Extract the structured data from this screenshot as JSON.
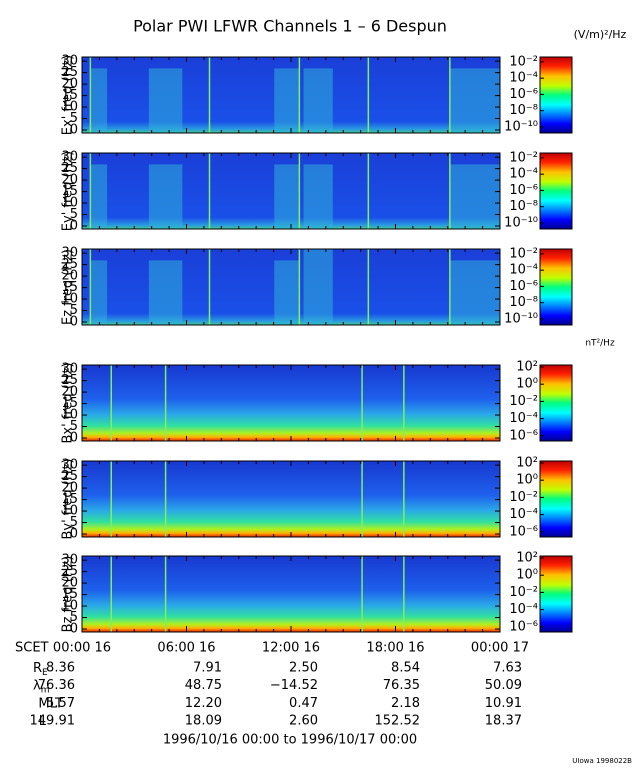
{
  "title": "Polar PWI LFWR Channels 1 – 6 Despun",
  "chart_data": [
    {
      "type": "spectrogram",
      "ylabel": "Ex' freq (Hz)",
      "ylim": [
        -1.3,
        31.8
      ],
      "yticks": [
        0,
        5,
        10,
        15,
        20,
        25,
        30
      ],
      "colorbar": {
        "unit": "(V/m)²/Hz",
        "log": true,
        "clim": [
          1.8e-11,
          0.04
        ],
        "ticks": [
          {
            "value": 0.01,
            "label": "10⁻²"
          },
          {
            "value": 0.0001,
            "label": "10⁻⁴"
          },
          {
            "value": 1e-06,
            "label": "10⁻⁶"
          },
          {
            "value": 1e-08,
            "label": "10⁻⁸"
          },
          {
            "value": 1e-10,
            "label": "10⁻¹⁰"
          }
        ]
      }
    },
    {
      "type": "spectrogram",
      "ylabel": "Ey' freq (Hz)",
      "ylim": [
        -1.3,
        31.8
      ],
      "yticks": [
        0,
        5,
        10,
        15,
        20,
        25,
        30
      ],
      "colorbar": {
        "log": true,
        "clim": [
          1.8e-11,
          0.04
        ],
        "ticks": [
          {
            "value": 0.01,
            "label": "10⁻²"
          },
          {
            "value": 0.0001,
            "label": "10⁻⁴"
          },
          {
            "value": 1e-06,
            "label": "10⁻⁶"
          },
          {
            "value": 1e-08,
            "label": "10⁻⁸"
          },
          {
            "value": 1e-10,
            "label": "10⁻¹⁰"
          }
        ]
      }
    },
    {
      "type": "spectrogram",
      "ylabel": "Ez freq (Hz)",
      "ylim": [
        -1.3,
        31.8
      ],
      "yticks": [
        0,
        5,
        10,
        15,
        20,
        25,
        30
      ],
      "colorbar": {
        "log": true,
        "clim": [
          1.8e-11,
          0.04
        ],
        "ticks": [
          {
            "value": 0.01,
            "label": "10⁻²"
          },
          {
            "value": 0.0001,
            "label": "10⁻⁴"
          },
          {
            "value": 1e-06,
            "label": "10⁻⁶"
          },
          {
            "value": 1e-08,
            "label": "10⁻⁸"
          },
          {
            "value": 1e-10,
            "label": "10⁻¹⁰"
          }
        ]
      }
    },
    {
      "type": "spectrogram",
      "ylabel": "Bx' freq (Hz)",
      "ylim": [
        -1.3,
        31.8
      ],
      "yticks": [
        0,
        5,
        10,
        15,
        20,
        25,
        30
      ],
      "colorbar": {
        "unit": "nT²/Hz",
        "log": true,
        "clim": [
          2.5e-07,
          170
        ],
        "ticks": [
          {
            "value": 100,
            "label": "10²"
          },
          {
            "value": 1,
            "label": "10⁰"
          },
          {
            "value": 0.01,
            "label": "10⁻²"
          },
          {
            "value": 0.0001,
            "label": "10⁻⁴"
          },
          {
            "value": 1e-06,
            "label": "10⁻⁶"
          }
        ]
      }
    },
    {
      "type": "spectrogram",
      "ylabel": "By' freq (Hz)",
      "ylim": [
        -1.3,
        31.8
      ],
      "yticks": [
        0,
        5,
        10,
        15,
        20,
        25,
        30
      ],
      "colorbar": {
        "log": true,
        "clim": [
          2.5e-07,
          170
        ],
        "ticks": [
          {
            "value": 100,
            "label": "10²"
          },
          {
            "value": 1,
            "label": "10⁰"
          },
          {
            "value": 0.01,
            "label": "10⁻²"
          },
          {
            "value": 0.0001,
            "label": "10⁻⁴"
          },
          {
            "value": 1e-06,
            "label": "10⁻⁶"
          }
        ]
      }
    },
    {
      "type": "spectrogram",
      "ylabel": "Bz freq (Hz)",
      "ylim": [
        -1.3,
        31.8
      ],
      "yticks": [
        0,
        5,
        10,
        15,
        20,
        25,
        30
      ],
      "xlim": [
        0,
        24
      ],
      "xticks": [
        {
          "value": 0,
          "label": "00:00 16"
        },
        {
          "value": 6,
          "label": "06:00 16"
        },
        {
          "value": 12,
          "label": "12:00 16"
        },
        {
          "value": 18,
          "label": "18:00 16"
        },
        {
          "value": 24,
          "label": "00:00 17"
        }
      ],
      "colorbar": {
        "log": true,
        "clim": [
          2.5e-07,
          170
        ],
        "ticks": [
          {
            "value": 100,
            "label": "10²"
          },
          {
            "value": 1,
            "label": "10⁰"
          },
          {
            "value": 0.01,
            "label": "10⁻²"
          },
          {
            "value": 0.0001,
            "label": "10⁻⁴"
          },
          {
            "value": 1e-06,
            "label": "10⁻⁶"
          }
        ]
      }
    }
  ],
  "ephemeris": {
    "scet_label": "SCET",
    "rows": [
      {
        "label": "R",
        "sub": "E",
        "values": [
          "8.36",
          "7.91",
          "2.50",
          "8.54",
          "7.63"
        ]
      },
      {
        "label": "λ",
        "sub": "m",
        "values": [
          "76.36",
          "48.75",
          "−14.52",
          "76.35",
          "50.09"
        ]
      },
      {
        "label": "MLT",
        "values": [
          "5.57",
          "12.20",
          "0.47",
          "2.18",
          "10.91"
        ]
      },
      {
        "label": "L",
        "values": [
          "149.91",
          "18.09",
          "2.60",
          "152.52",
          "18.37"
        ]
      }
    ]
  },
  "date_range": "1996/10/16 00:00 to 1996/10/17 00:00",
  "footer": "UIowa 1998022B"
}
